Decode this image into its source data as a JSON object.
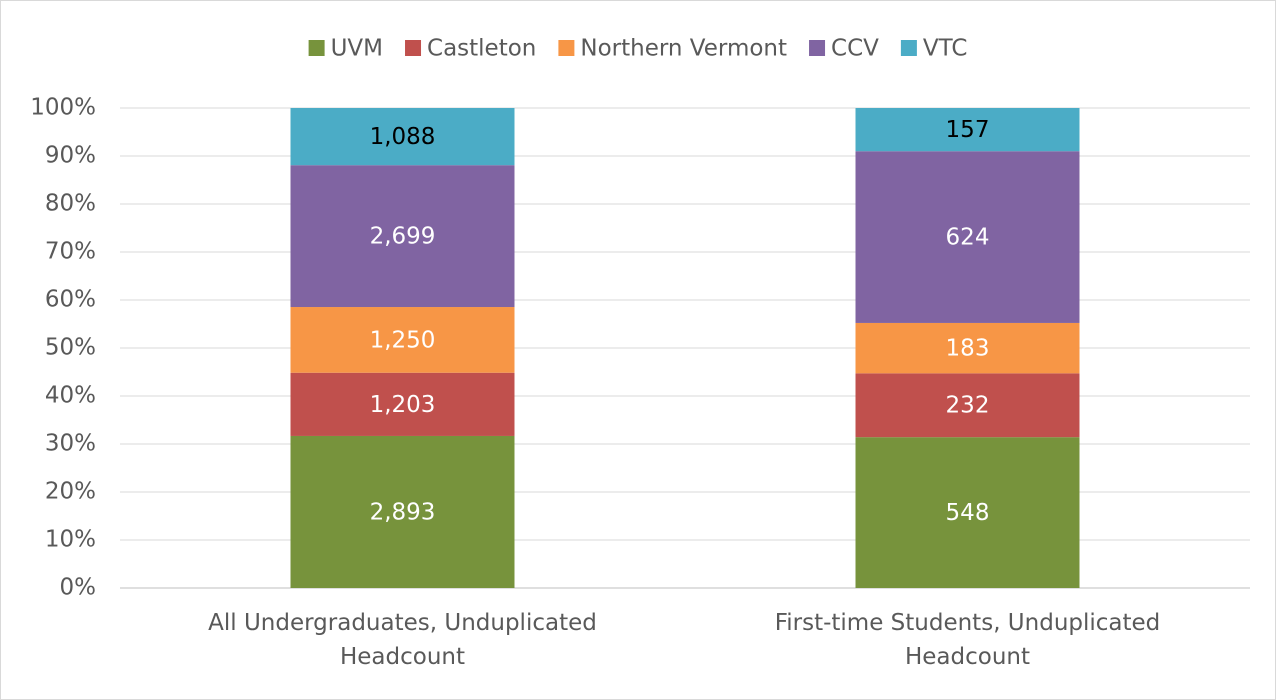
{
  "chart_data": {
    "type": "bar",
    "stacking": "percent",
    "categories": [
      "All Undergraduates, Unduplicated Headcount",
      "First-time Students, Unduplicated Headcount"
    ],
    "series": [
      {
        "name": "UVM",
        "color": "#77933c",
        "label_color": "#ffffff",
        "values": [
          2893,
          548
        ],
        "value_labels": [
          "2,893",
          "548"
        ]
      },
      {
        "name": "Castleton",
        "color": "#c0504d",
        "label_color": "#ffffff",
        "values": [
          1203,
          232
        ],
        "value_labels": [
          "1,203",
          "232"
        ]
      },
      {
        "name": "Northern Vermont",
        "color": "#f79646",
        "label_color": "#ffffff",
        "values": [
          1250,
          183
        ],
        "value_labels": [
          "1,250",
          "183"
        ]
      },
      {
        "name": "CCV",
        "color": "#8064a2",
        "label_color": "#ffffff",
        "values": [
          2699,
          624
        ],
        "value_labels": [
          "2,699",
          "624"
        ]
      },
      {
        "name": "VTC",
        "color": "#4bacc6",
        "label_color": "#000000",
        "values": [
          1088,
          157
        ],
        "value_labels": [
          "1,088",
          "157"
        ]
      }
    ],
    "ylim": [
      0,
      100
    ],
    "yticks": [
      {
        "value": 0,
        "label": "0%"
      },
      {
        "value": 10,
        "label": "10%"
      },
      {
        "value": 20,
        "label": "20%"
      },
      {
        "value": 30,
        "label": "30%"
      },
      {
        "value": 40,
        "label": "40%"
      },
      {
        "value": 50,
        "label": "50%"
      },
      {
        "value": 60,
        "label": "60%"
      },
      {
        "value": 70,
        "label": "70%"
      },
      {
        "value": 80,
        "label": "80%"
      },
      {
        "value": 90,
        "label": "90%"
      },
      {
        "value": 100,
        "label": "100%"
      }
    ],
    "grid": true,
    "legend": "top"
  }
}
